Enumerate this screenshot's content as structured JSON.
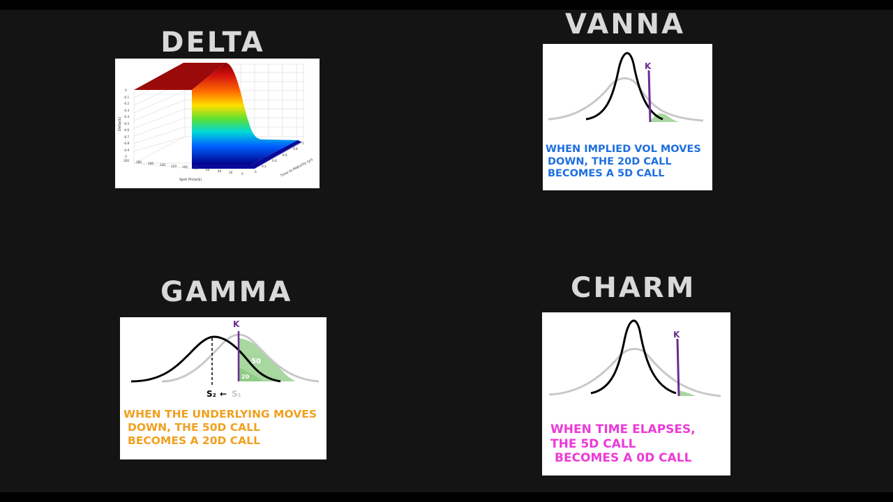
{
  "titles": {
    "delta": "DELTA",
    "vanna": "VANNA",
    "gamma": "GAMMA",
    "charm": "CHARM"
  },
  "delta_chart": {
    "type": "surface",
    "ylabel": "Delta($)",
    "xlabel": "Spot Price($)",
    "tlabel": "Time to Maturity (yr)",
    "z_ticks": [
      "0",
      "-0.1",
      "-0.2",
      "-0.3",
      "-0.4",
      "-0.5",
      "-0.6",
      "-0.7",
      "-0.8",
      "-0.9",
      "-1"
    ],
    "x_ticks": [
      "200",
      "180",
      "160",
      "140",
      "120",
      "100",
      "80",
      "60",
      "40",
      "20",
      "0"
    ],
    "t_ticks": [
      "0",
      "0.2",
      "0.4",
      "0.6",
      "0.8",
      "1"
    ]
  },
  "vanna": {
    "strike_label": "K",
    "caption": [
      "WHEN IMPLIED VOL MOVES",
      "DOWN, THE 20d CALL",
      "BECOMES A 5d CALL"
    ]
  },
  "gamma": {
    "strike_label": "K",
    "s2_label": "S₂",
    "s1_label": "S₁",
    "arrow": "←",
    "delta_50_label": "50",
    "delta_20_label": "20",
    "caption": [
      "WHEN THE UNDERLYING MOVES",
      "DOWN, THE 50d CALL",
      "BECOMES A 20d CALL"
    ]
  },
  "charm": {
    "strike_label": "K",
    "caption": [
      "WHEN TIME ELAPSES,",
      "THE 5d CALL",
      "BECOMES A 0d CALL"
    ]
  },
  "colors": {
    "background": "#141414",
    "title": "#d9d9d9",
    "vanna_caption": "#1f6fe0",
    "gamma_caption": "#f0a020",
    "charm_caption": "#ec3ad8",
    "strike_line": "#6a2c91",
    "shade_green": "#a8d8a0",
    "wide_curve": "#c8c8c8"
  }
}
